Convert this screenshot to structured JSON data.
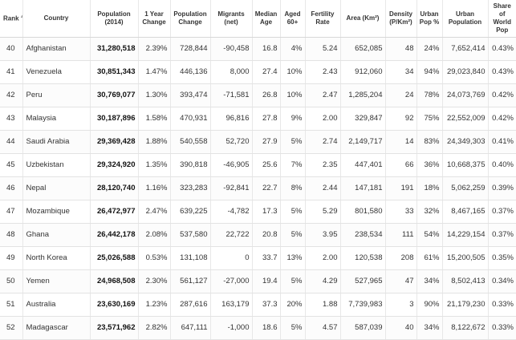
{
  "table": {
    "sort_icon": "sort-arrows-icon",
    "headers": {
      "rank": "Rank",
      "country": "Country",
      "population": "Population (2014)",
      "yearly_change": "1 Year Change",
      "pop_change": "Population Change",
      "migrants": "Migrants (net)",
      "median_age": "Median Age",
      "aged60": "Aged 60+",
      "fertility": "Fertility Rate",
      "area": "Area (Km²)",
      "density": "Density (P/Km²)",
      "urban_pct": "Urban Pop %",
      "urban_pop": "Urban Population",
      "world_share": "Share of World Pop"
    },
    "rows": [
      {
        "rank": "40",
        "country": "Afghanistan",
        "population": "31,280,518",
        "yearly_change": "2.39%",
        "pop_change": "728,844",
        "migrants": "-90,458",
        "median_age": "16.8",
        "aged60": "4%",
        "fertility": "5.24",
        "area": "652,085",
        "density": "48",
        "urban_pct": "24%",
        "urban_pop": "7,652,414",
        "world_share": "0.43%"
      },
      {
        "rank": "41",
        "country": "Venezuela",
        "population": "30,851,343",
        "yearly_change": "1.47%",
        "pop_change": "446,136",
        "migrants": "8,000",
        "median_age": "27.4",
        "aged60": "10%",
        "fertility": "2.43",
        "area": "912,060",
        "density": "34",
        "urban_pct": "94%",
        "urban_pop": "29,023,840",
        "world_share": "0.43%"
      },
      {
        "rank": "42",
        "country": "Peru",
        "population": "30,769,077",
        "yearly_change": "1.30%",
        "pop_change": "393,474",
        "migrants": "-71,581",
        "median_age": "26.8",
        "aged60": "10%",
        "fertility": "2.47",
        "area": "1,285,204",
        "density": "24",
        "urban_pct": "78%",
        "urban_pop": "24,073,769",
        "world_share": "0.42%"
      },
      {
        "rank": "43",
        "country": "Malaysia",
        "population": "30,187,896",
        "yearly_change": "1.58%",
        "pop_change": "470,931",
        "migrants": "96,816",
        "median_age": "27.8",
        "aged60": "9%",
        "fertility": "2.00",
        "area": "329,847",
        "density": "92",
        "urban_pct": "75%",
        "urban_pop": "22,552,009",
        "world_share": "0.42%"
      },
      {
        "rank": "44",
        "country": "Saudi Arabia",
        "population": "29,369,428",
        "yearly_change": "1.88%",
        "pop_change": "540,558",
        "migrants": "52,720",
        "median_age": "27.9",
        "aged60": "5%",
        "fertility": "2.74",
        "area": "2,149,717",
        "density": "14",
        "urban_pct": "83%",
        "urban_pop": "24,349,303",
        "world_share": "0.41%"
      },
      {
        "rank": "45",
        "country": "Uzbekistan",
        "population": "29,324,920",
        "yearly_change": "1.35%",
        "pop_change": "390,818",
        "migrants": "-46,905",
        "median_age": "25.6",
        "aged60": "7%",
        "fertility": "2.35",
        "area": "447,401",
        "density": "66",
        "urban_pct": "36%",
        "urban_pop": "10,668,375",
        "world_share": "0.40%"
      },
      {
        "rank": "46",
        "country": "Nepal",
        "population": "28,120,740",
        "yearly_change": "1.16%",
        "pop_change": "323,283",
        "migrants": "-92,841",
        "median_age": "22.7",
        "aged60": "8%",
        "fertility": "2.44",
        "area": "147,181",
        "density": "191",
        "urban_pct": "18%",
        "urban_pop": "5,062,259",
        "world_share": "0.39%"
      },
      {
        "rank": "47",
        "country": "Mozambique",
        "population": "26,472,977",
        "yearly_change": "2.47%",
        "pop_change": "639,225",
        "migrants": "-4,782",
        "median_age": "17.3",
        "aged60": "5%",
        "fertility": "5.29",
        "area": "801,580",
        "density": "33",
        "urban_pct": "32%",
        "urban_pop": "8,467,165",
        "world_share": "0.37%"
      },
      {
        "rank": "48",
        "country": "Ghana",
        "population": "26,442,178",
        "yearly_change": "2.08%",
        "pop_change": "537,580",
        "migrants": "22,722",
        "median_age": "20.8",
        "aged60": "5%",
        "fertility": "3.95",
        "area": "238,534",
        "density": "111",
        "urban_pct": "54%",
        "urban_pop": "14,229,154",
        "world_share": "0.37%"
      },
      {
        "rank": "49",
        "country": "North Korea",
        "population": "25,026,588",
        "yearly_change": "0.53%",
        "pop_change": "131,108",
        "migrants": "0",
        "median_age": "33.7",
        "aged60": "13%",
        "fertility": "2.00",
        "area": "120,538",
        "density": "208",
        "urban_pct": "61%",
        "urban_pop": "15,200,505",
        "world_share": "0.35%"
      },
      {
        "rank": "50",
        "country": "Yemen",
        "population": "24,968,508",
        "yearly_change": "2.30%",
        "pop_change": "561,127",
        "migrants": "-27,000",
        "median_age": "19.4",
        "aged60": "5%",
        "fertility": "4.29",
        "area": "527,965",
        "density": "47",
        "urban_pct": "34%",
        "urban_pop": "8,502,413",
        "world_share": "0.34%"
      },
      {
        "rank": "51",
        "country": "Australia",
        "population": "23,630,169",
        "yearly_change": "1.23%",
        "pop_change": "287,616",
        "migrants": "163,179",
        "median_age": "37.3",
        "aged60": "20%",
        "fertility": "1.88",
        "area": "7,739,983",
        "density": "3",
        "urban_pct": "90%",
        "urban_pop": "21,179,230",
        "world_share": "0.33%"
      },
      {
        "rank": "52",
        "country": "Madagascar",
        "population": "23,571,962",
        "yearly_change": "2.82%",
        "pop_change": "647,111",
        "migrants": "-1,000",
        "median_age": "18.6",
        "aged60": "5%",
        "fertility": "4.57",
        "area": "587,039",
        "density": "40",
        "urban_pct": "34%",
        "urban_pop": "8,122,672",
        "world_share": "0.33%"
      }
    ]
  }
}
